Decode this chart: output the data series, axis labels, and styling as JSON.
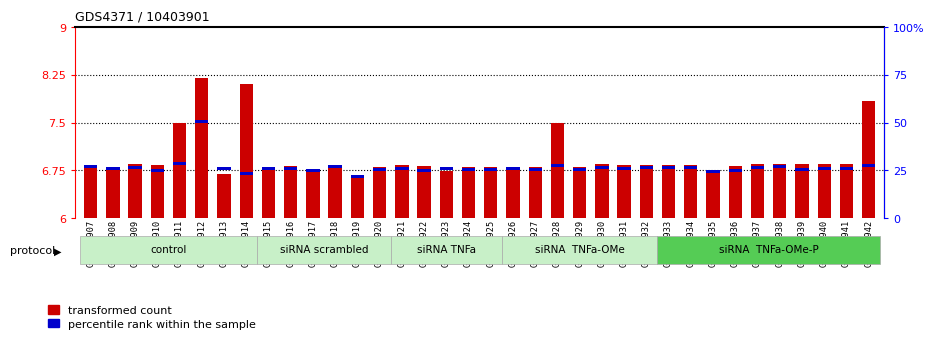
{
  "title": "GDS4371 / 10403901",
  "samples": [
    "GSM790907",
    "GSM790908",
    "GSM790909",
    "GSM790910",
    "GSM790911",
    "GSM790912",
    "GSM790913",
    "GSM790914",
    "GSM790915",
    "GSM790916",
    "GSM790917",
    "GSM790918",
    "GSM790919",
    "GSM790920",
    "GSM790921",
    "GSM790922",
    "GSM790923",
    "GSM790924",
    "GSM790925",
    "GSM790926",
    "GSM790927",
    "GSM790928",
    "GSM790929",
    "GSM790930",
    "GSM790931",
    "GSM790932",
    "GSM790933",
    "GSM790934",
    "GSM790935",
    "GSM790936",
    "GSM790937",
    "GSM790938",
    "GSM790939",
    "GSM790940",
    "GSM790941",
    "GSM790942"
  ],
  "red_values": [
    6.82,
    6.76,
    6.85,
    6.84,
    7.5,
    8.2,
    6.69,
    8.1,
    6.8,
    6.81,
    6.72,
    6.82,
    6.63,
    6.8,
    6.84,
    6.82,
    6.74,
    6.8,
    6.8,
    6.79,
    6.8,
    7.5,
    6.8,
    6.85,
    6.83,
    6.84,
    6.84,
    6.84,
    6.75,
    6.82,
    6.85,
    6.85,
    6.85,
    6.85,
    6.85,
    7.83
  ],
  "blue_values": [
    6.79,
    6.75,
    6.77,
    6.73,
    6.84,
    7.5,
    6.75,
    6.68,
    6.75,
    6.76,
    6.73,
    6.79,
    6.63,
    6.74,
    6.75,
    6.72,
    6.75,
    6.74,
    6.74,
    6.75,
    6.74,
    6.8,
    6.74,
    6.77,
    6.75,
    6.77,
    6.77,
    6.77,
    6.71,
    6.73,
    6.77,
    6.79,
    6.74,
    6.76,
    6.76,
    6.8
  ],
  "groups": [
    {
      "label": "control",
      "start": 0,
      "end": 8
    },
    {
      "label": "siRNA scrambled",
      "start": 8,
      "end": 14
    },
    {
      "label": "siRNA TNFa",
      "start": 14,
      "end": 19
    },
    {
      "label": "siRNA  TNFa-OMe",
      "start": 19,
      "end": 26
    },
    {
      "label": "siRNA  TNFa-OMe-P",
      "start": 26,
      "end": 36
    }
  ],
  "group_colors": [
    "#c8f0c8",
    "#c8f0c8",
    "#c8f0c8",
    "#c8f0c8",
    "#55cc55"
  ],
  "ylim_left": [
    6.0,
    9.0
  ],
  "ylim_right": [
    0,
    100
  ],
  "yticks_left": [
    6.0,
    6.75,
    7.5,
    8.25,
    9.0
  ],
  "yticks_right": [
    0,
    25,
    50,
    75,
    100
  ],
  "ytick_labels_left": [
    "6",
    "6.75",
    "7.5",
    "8.25",
    "9"
  ],
  "ytick_labels_right": [
    "0",
    "25",
    "50",
    "75",
    "100%"
  ],
  "hlines": [
    6.75,
    7.5,
    8.25
  ],
  "bar_color": "#cc0000",
  "blue_color": "#0000cc",
  "bar_width": 0.6,
  "base_value": 6.0
}
